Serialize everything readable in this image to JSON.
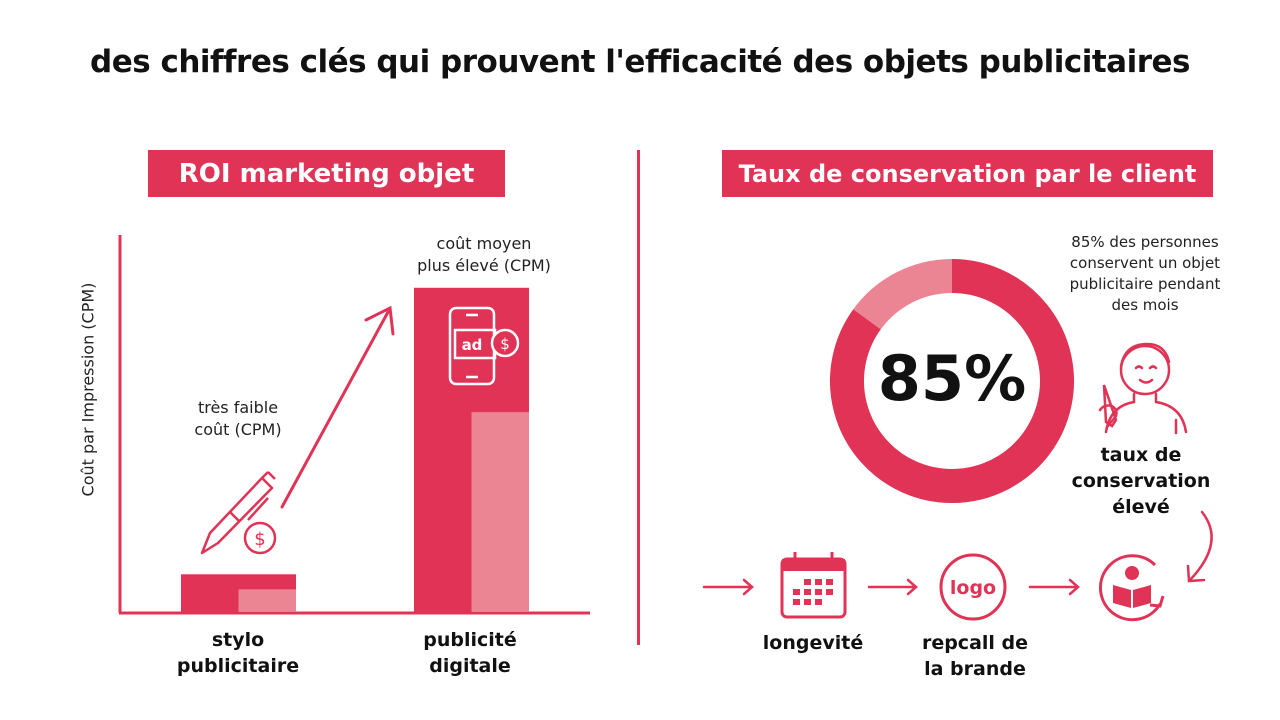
{
  "title": "des chiffres clés qui prouvent l'efficacité des objets publicitaires",
  "colors": {
    "accent": "#e03355",
    "accent_light": "#eb8593"
  },
  "left_panel": {
    "badge": "ROI marketing objet",
    "notes": [
      {
        "line1": "très faible",
        "line2": "coût (CPM)"
      },
      {
        "line1": "coût moyen",
        "line2": "plus élevé (CPM)"
      }
    ]
  },
  "right_panel": {
    "badge": "Taux de conservation par le client",
    "center_value": "85%",
    "description": [
      "85% des personnes",
      "conservent un objet",
      "publicitaire pendant",
      "des mois"
    ],
    "highlight": [
      "taux de",
      "conservation",
      "élevé"
    ],
    "flow": [
      {
        "icon": "calendar-icon",
        "label": [
          "longevité"
        ]
      },
      {
        "icon": "logo-icon",
        "label": [
          "repcall de",
          "la brande"
        ],
        "icon_text": "logo"
      },
      {
        "icon": "reader-cycle-icon",
        "label": []
      }
    ]
  },
  "chart_data": [
    {
      "type": "bar",
      "ylabel": "Coût par Impression (CPM)",
      "xlabel": "",
      "categories": [
        [
          "stylo",
          "publicitaire"
        ],
        [
          "publicité",
          "digitale"
        ]
      ],
      "values": [
        10,
        86
      ],
      "inner_values": [
        6,
        53
      ],
      "ylim": [
        0,
        100
      ],
      "grid": false,
      "axis_ticks": false
    },
    {
      "type": "pie",
      "variant": "donut",
      "slices": [
        {
          "label": "conservent",
          "value": 85,
          "color": "#e03355"
        },
        {
          "label": "",
          "value": 15,
          "color": "#eb8593"
        }
      ]
    }
  ]
}
